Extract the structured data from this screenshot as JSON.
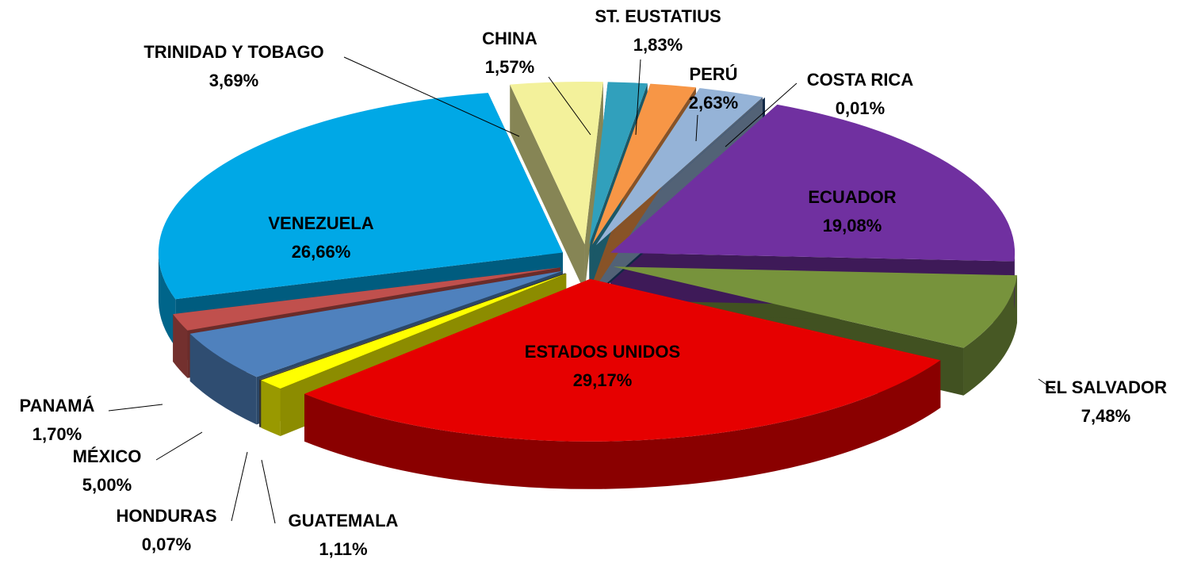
{
  "chart_data": {
    "type": "pie",
    "categories": [
      "ESTADOS UNIDOS",
      "EL SALVADOR",
      "ECUADOR",
      "COSTA RICA",
      "PERÚ",
      "ST. EUSTATIUS",
      "CHINA",
      "TRINIDAD Y TOBAGO",
      "VENEZUELA",
      "PANAMÁ",
      "MÉXICO",
      "HONDURAS",
      "GUATEMALA"
    ],
    "values": [
      29.17,
      7.48,
      19.08,
      0.01,
      2.63,
      1.83,
      1.57,
      3.69,
      26.66,
      1.7,
      5.0,
      0.07,
      1.11
    ],
    "value_labels": [
      "29,17%",
      "7,48%",
      "19,08%",
      "0,01%",
      "2,63%",
      "1,83%",
      "1,57%",
      "3,69%",
      "26,66%",
      "1,70%",
      "5,00%",
      "0,07%",
      "1,11%"
    ],
    "colors": [
      "#e60000",
      "#77933c",
      "#7030a0",
      "#1f497d",
      "#95b3d7",
      "#f79646",
      "#31a0bc",
      "#f3f19b",
      "#00a8e6",
      "#c0504d",
      "#4f81bd",
      "#595959",
      "#ffff00"
    ]
  }
}
